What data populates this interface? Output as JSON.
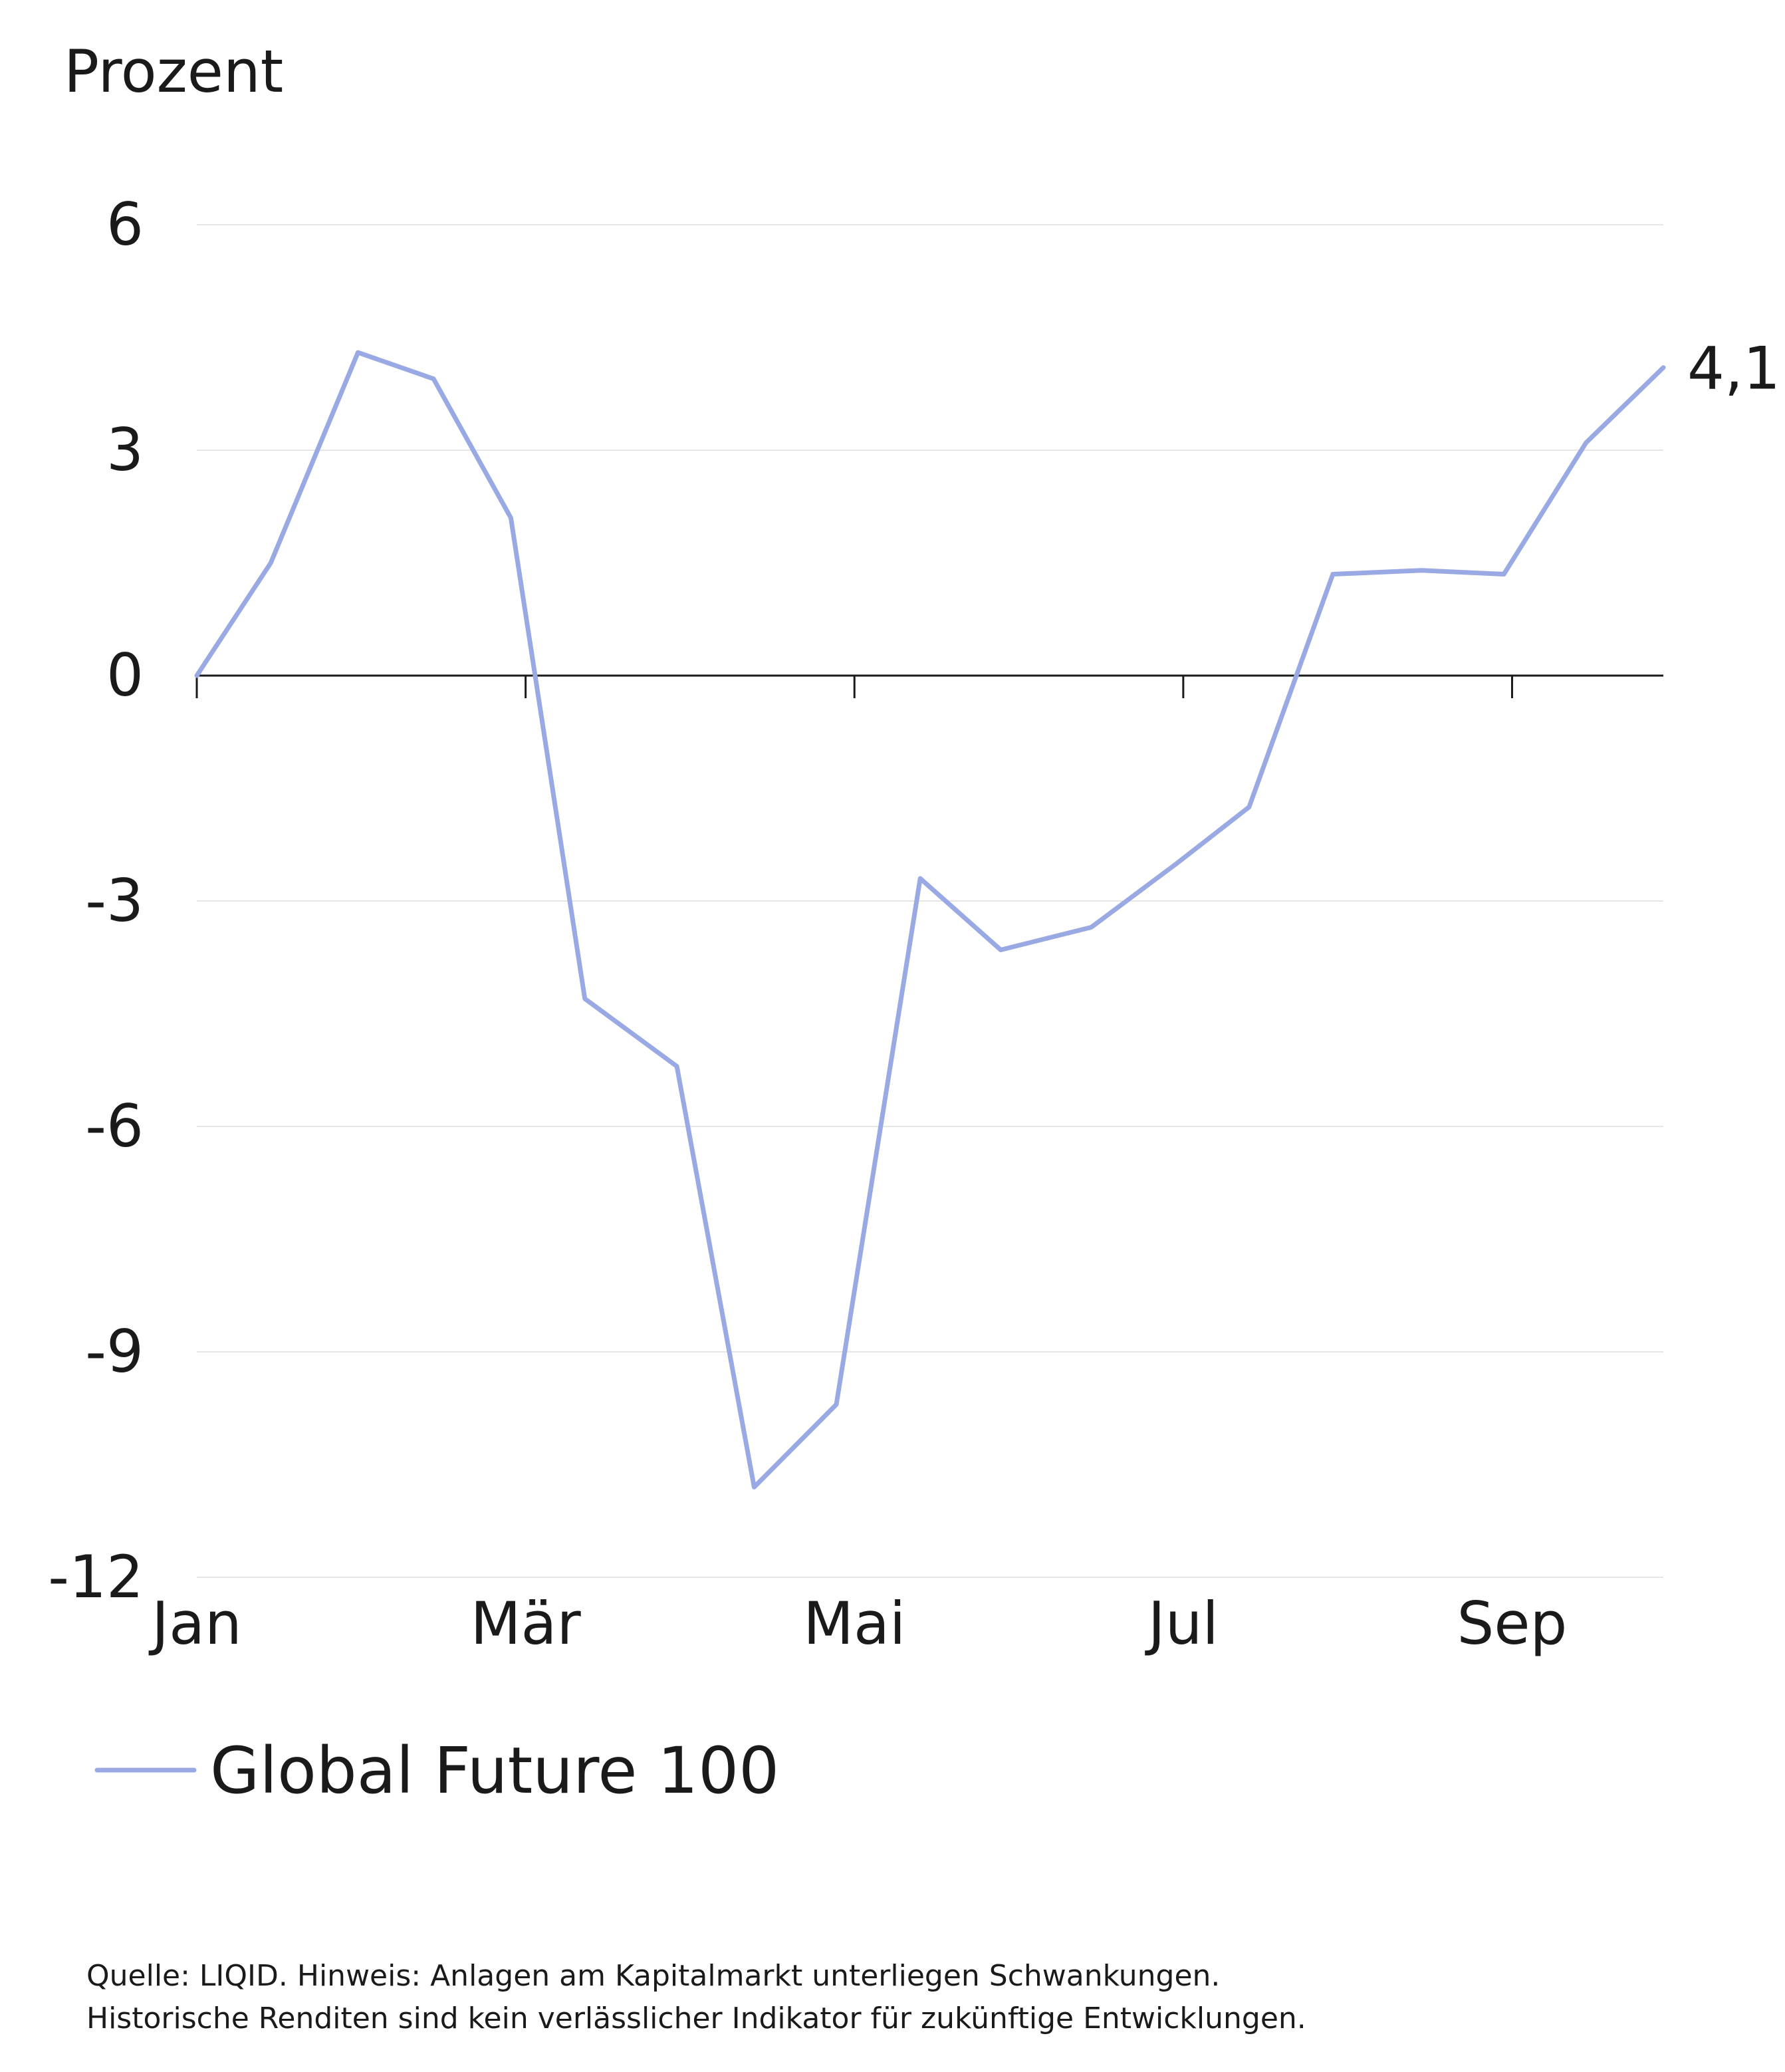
{
  "chart_data": {
    "type": "line",
    "ylabel": "Prozent",
    "xlabel": "",
    "ylim": [
      -12,
      6
    ],
    "yticks": [
      6,
      3,
      0,
      -3,
      -6,
      -9,
      -12
    ],
    "ytick_labels": [
      "6",
      "3",
      "0",
      "-3",
      "-6",
      "-9",
      "-12"
    ],
    "x_ticks": [
      "Jan",
      "Mär",
      "Mai",
      "Jul",
      "Sep"
    ],
    "x_tick_positions": [
      0,
      2,
      4,
      6,
      8
    ],
    "xlim": [
      0,
      8.92
    ],
    "grid": true,
    "legend_position": "bottom-left",
    "series": [
      {
        "name": "Global Future 100",
        "color": "#99a9e3",
        "x": [
          0,
          0.45,
          0.98,
          1.44,
          1.91,
          2.36,
          2.92,
          3.39,
          3.89,
          4.4,
          4.89,
          5.44,
          5.96,
          6.4,
          6.91,
          7.45,
          7.95,
          8.45,
          8.92
        ],
        "values": [
          0,
          1.5,
          4.3,
          3.95,
          2.1,
          -4.3,
          -5.2,
          -10.8,
          -9.7,
          -2.7,
          -3.65,
          -3.35,
          -2.5,
          -1.75,
          1.35,
          1.4,
          1.35,
          3.1,
          4.1
        ]
      }
    ],
    "end_label": "4,1"
  },
  "source_note": {
    "line1": "Quelle: LIQID. Hinweis: Anlagen am Kapitalmarkt unterliegen Schwankungen.",
    "line2": "Historische Renditen sind kein verlässlicher Indikator für zukünftige Entwicklungen."
  }
}
